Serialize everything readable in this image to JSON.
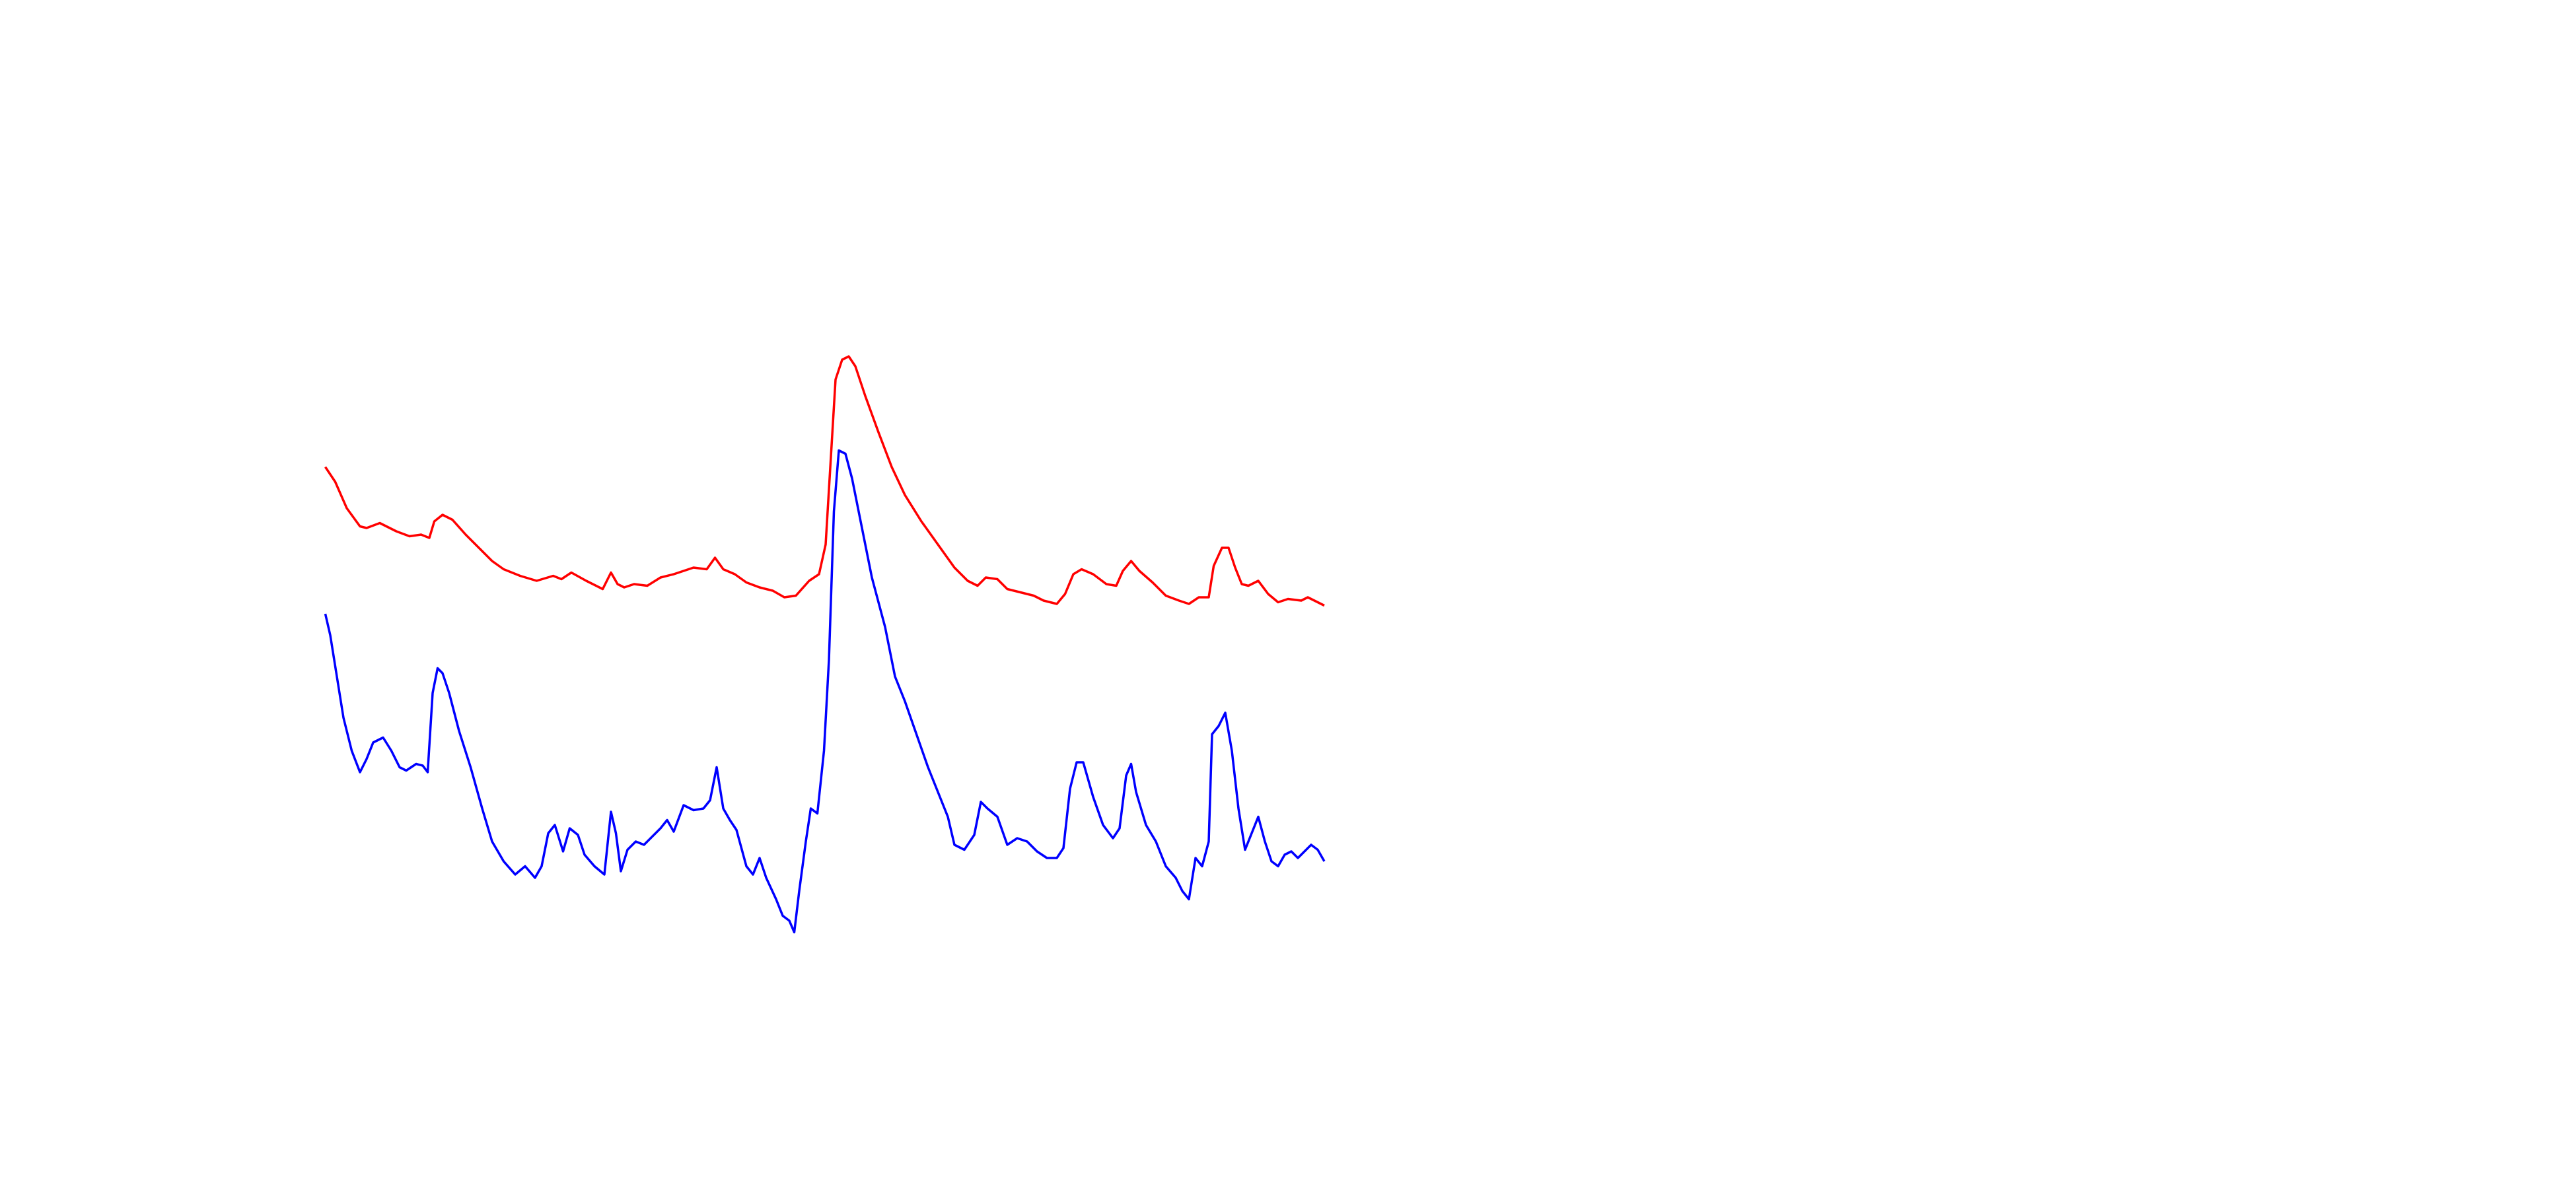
{
  "chart_data": {
    "type": "line",
    "xlim": [
      0,
      1560
    ],
    "ylim": [
      0,
      720
    ],
    "series": [
      {
        "color": "#ff0000",
        "x": [
          197,
          203,
          210,
          218,
          222,
          230,
          240,
          248,
          255,
          260,
          263,
          268,
          274,
          282,
          290,
          298,
          305,
          315,
          325,
          335,
          340,
          346,
          355,
          365,
          370,
          374,
          378,
          384,
          392,
          400,
          408,
          414,
          420,
          428,
          433,
          438,
          445,
          452,
          460,
          468,
          475,
          482,
          490,
          496,
          500,
          503,
          506,
          510,
          514,
          518,
          524,
          532,
          540,
          548,
          558,
          568,
          578,
          586,
          592,
          597,
          604,
          610,
          618,
          626,
          632,
          640,
          645,
          650,
          655,
          662,
          670,
          676,
          680,
          685,
          690,
          698,
          706,
          714,
          720,
          726,
          732,
          735,
          740,
          744,
          748,
          752,
          756,
          762,
          768,
          774,
          780,
          788,
          792,
          796,
          802
        ],
        "values": [
          437,
          428,
          412,
          401,
          400,
          403,
          398,
          395,
          396,
          394,
          404,
          408,
          405,
          396,
          388,
          380,
          375,
          371,
          368,
          371,
          369,
          373,
          368,
          363,
          373,
          366,
          364,
          366,
          365,
          370,
          372,
          374,
          376,
          375,
          382,
          375,
          372,
          367,
          364,
          362,
          358,
          359,
          368,
          372,
          390,
          440,
          490,
          502,
          504,
          498,
          480,
          458,
          437,
          420,
          404,
          390,
          376,
          368,
          365,
          370,
          369,
          363,
          361,
          359,
          356,
          354,
          360,
          372,
          375,
          372,
          366,
          365,
          374,
          380,
          374,
          367,
          359,
          356,
          354,
          358,
          358,
          377,
          388,
          388,
          376,
          366,
          365,
          368,
          360,
          355,
          357,
          356,
          358,
          356,
          353
        ]
      },
      {
        "color": "#0000ff",
        "x": [
          197,
          200,
          204,
          208,
          213,
          218,
          222,
          226,
          232,
          237,
          242,
          246,
          252,
          256,
          259,
          262,
          265,
          268,
          272,
          278,
          285,
          292,
          298,
          305,
          312,
          318,
          324,
          328,
          332,
          336,
          341,
          345,
          350,
          354,
          360,
          366,
          370,
          373,
          376,
          380,
          385,
          390,
          396,
          400,
          404,
          408,
          414,
          420,
          426,
          430,
          434,
          438,
          442,
          446,
          452,
          456,
          460,
          464,
          470,
          474,
          478,
          481,
          484,
          488,
          491,
          495,
          499,
          502,
          505,
          508,
          512,
          516,
          522,
          528,
          536,
          542,
          548,
          555,
          562,
          568,
          574,
          578,
          584,
          590,
          594,
          598,
          604,
          610,
          616,
          622,
          628,
          634,
          640,
          644,
          648,
          652,
          656,
          662,
          668,
          674,
          678,
          682,
          685,
          688,
          694,
          700,
          706,
          712,
          716,
          720,
          724,
          728,
          732,
          734,
          738,
          742,
          746,
          750,
          754,
          758,
          762,
          766,
          770,
          774,
          778,
          782,
          786,
          790,
          794,
          798,
          802
        ],
        "values": [
          348,
          335,
          310,
          285,
          265,
          252,
          260,
          270,
          273,
          265,
          255,
          253,
          257,
          256,
          252,
          300,
          315,
          312,
          300,
          277,
          255,
          230,
          210,
          198,
          190,
          195,
          188,
          195,
          215,
          220,
          204,
          218,
          214,
          202,
          195,
          190,
          228,
          215,
          192,
          205,
          210,
          208,
          214,
          218,
          223,
          216,
          232,
          229,
          230,
          235,
          255,
          230,
          223,
          217,
          195,
          190,
          200,
          188,
          175,
          165,
          162,
          155,
          180,
          210,
          230,
          227,
          265,
          320,
          410,
          447,
          445,
          430,
          400,
          370,
          340,
          310,
          295,
          275,
          255,
          240,
          225,
          208,
          205,
          214,
          234,
          230,
          225,
          208,
          212,
          210,
          204,
          200,
          200,
          206,
          242,
          258,
          258,
          237,
          220,
          212,
          218,
          250,
          257,
          240,
          220,
          210,
          195,
          188,
          180,
          175,
          200,
          195,
          210,
          275,
          280,
          288,
          265,
          230,
          205,
          215,
          225,
          210,
          198,
          195,
          202,
          204,
          200,
          204,
          208,
          205,
          198
        ]
      }
    ]
  }
}
